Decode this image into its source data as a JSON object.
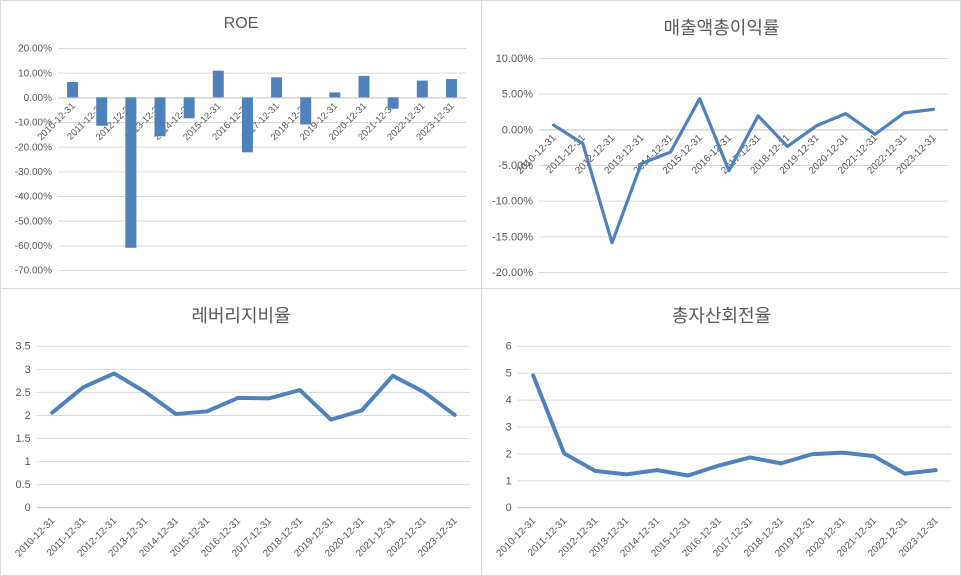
{
  "colors": {
    "accent": "#4f81bd",
    "grid": "#d9d9d9",
    "axis": "#bfbfbf",
    "text": "#595959",
    "background": "#ffffff"
  },
  "chart_data": [
    {
      "type": "bar",
      "title": "ROE",
      "unit": "percent",
      "legend": false,
      "grid": true,
      "ylim": [
        -70,
        20
      ],
      "y_ticks": [
        20,
        10,
        0,
        -10,
        -20,
        -30,
        -40,
        -50,
        -60,
        -70
      ],
      "y_tick_labels": [
        "20.00%",
        "10.00%",
        "0.00%",
        "-10.00%",
        "-20.00%",
        "-30.00%",
        "-40.00%",
        "-50.00%",
        "-60.00%",
        "-70.00%"
      ],
      "categories": [
        "2010-12-31",
        "2011-12-31",
        "2012-12-31",
        "2013-12-31",
        "2014-12-31",
        "2015-12-31",
        "2016-12-31",
        "2017-12-31",
        "2018-12-31",
        "2019-12-31",
        "2020-12-31",
        "2021-12-31",
        "2022-12-31",
        "2023-12-31"
      ],
      "values": [
        6.2,
        -11.5,
        -61,
        -15.8,
        -8.5,
        10.8,
        -22.3,
        8.1,
        -11,
        2,
        8.7,
        -4.6,
        6.8,
        7.4
      ]
    },
    {
      "type": "line",
      "title": "매출액총이익률",
      "unit": "percent",
      "legend": false,
      "grid": true,
      "ylim": [
        -20,
        10
      ],
      "y_ticks": [
        10,
        5,
        0,
        -5,
        -10,
        -15,
        -20
      ],
      "y_tick_labels": [
        "10.00%",
        "5.00%",
        "0.00%",
        "-5.00%",
        "-10.00%",
        "-15.00%",
        "-20.00%"
      ],
      "categories": [
        "2010-12-31",
        "2011-12-31",
        "2012-12-31",
        "2013-12-31",
        "2014-12-31",
        "2015-12-31",
        "2016-12-31",
        "2017-12-31",
        "2018-12-31",
        "2019-12-31",
        "2020-12-31",
        "2021-12-31",
        "2022-12-31",
        "2023-12-31"
      ],
      "values": [
        0.6,
        -2,
        -15.9,
        -4.8,
        -3.2,
        4.3,
        -5.8,
        1.9,
        -2.4,
        0.5,
        2.2,
        -0.7,
        2.3,
        2.8
      ]
    },
    {
      "type": "line",
      "title": "레버리지비율",
      "unit": "ratio",
      "legend": false,
      "grid": true,
      "ylim": [
        0,
        3.5
      ],
      "y_ticks": [
        3.5,
        3,
        2.5,
        2,
        1.5,
        1,
        0.5,
        0
      ],
      "y_tick_labels": [
        "3.5",
        "3",
        "2.5",
        "2",
        "1.5",
        "1",
        "0.5",
        "0"
      ],
      "categories": [
        "2010-12-31",
        "2011-12-31",
        "2012-12-31",
        "2013-12-31",
        "2014-12-31",
        "2015-12-31",
        "2016-12-31",
        "2017-12-31",
        "2018-12-31",
        "2019-12-31",
        "2020-12-31",
        "2021-12-31",
        "2022-12-31",
        "2023-12-31"
      ],
      "values": [
        2.05,
        2.6,
        2.9,
        2.5,
        2.02,
        2.08,
        2.37,
        2.36,
        2.54,
        1.9,
        2.1,
        2.85,
        2.5,
        2.0
      ]
    },
    {
      "type": "line",
      "title": "총자산회전율",
      "unit": "ratio",
      "legend": false,
      "grid": true,
      "ylim": [
        0,
        6
      ],
      "y_ticks": [
        6,
        5,
        4,
        3,
        2,
        1,
        0
      ],
      "y_tick_labels": [
        "6",
        "5",
        "4",
        "3",
        "2",
        "1",
        "0"
      ],
      "categories": [
        "2010-12-31",
        "2011-12-31",
        "2012-12-31",
        "2013-12-31",
        "2014-12-31",
        "2015-12-31",
        "2016-12-31",
        "2017-12-31",
        "2018-12-31",
        "2019-12-31",
        "2020-12-31",
        "2021-12-31",
        "2022-12-31",
        "2023-12-31"
      ],
      "values": [
        4.9,
        2.0,
        1.35,
        1.22,
        1.38,
        1.18,
        1.55,
        1.85,
        1.63,
        1.97,
        2.03,
        1.9,
        1.25,
        1.38
      ]
    }
  ]
}
